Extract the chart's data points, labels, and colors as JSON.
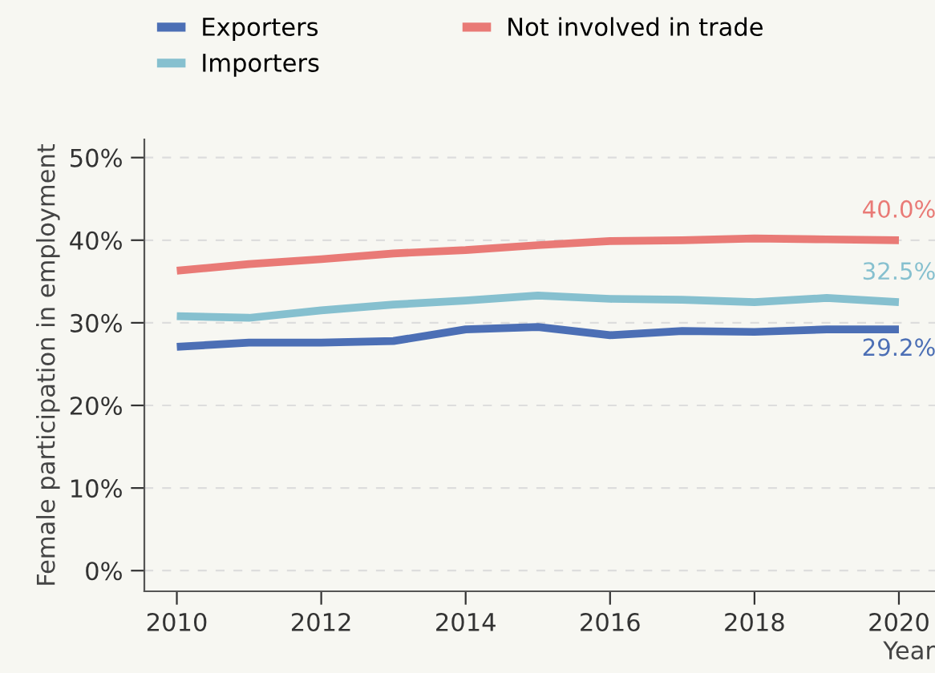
{
  "chart_data": {
    "type": "line",
    "xlabel": "Year",
    "ylabel": "Female participation in employment",
    "x": [
      2010,
      2011,
      2012,
      2013,
      2014,
      2015,
      2016,
      2017,
      2018,
      2019,
      2020
    ],
    "series": [
      {
        "name": "Exporters",
        "color": "#4c6fb5",
        "values": [
          27.1,
          27.6,
          27.6,
          27.8,
          29.2,
          29.5,
          28.5,
          29.0,
          28.9,
          29.2,
          29.2
        ],
        "value_labels": [
          null,
          null,
          null,
          null,
          null,
          null,
          null,
          null,
          null,
          null,
          "29.2%"
        ]
      },
      {
        "name": "Importers",
        "color": "#86c0cf",
        "values": [
          30.8,
          30.6,
          31.5,
          32.2,
          32.7,
          33.3,
          32.9,
          32.8,
          32.5,
          33.0,
          32.5
        ],
        "value_labels": [
          null,
          null,
          null,
          null,
          null,
          null,
          null,
          null,
          null,
          null,
          "32.5%"
        ]
      },
      {
        "name": "Not involved in trade",
        "color": "#e97a76",
        "values": [
          36.3,
          37.1,
          37.7,
          38.4,
          38.8,
          39.4,
          39.9,
          40.0,
          40.2,
          40.1,
          40.0
        ],
        "value_labels": [
          null,
          null,
          null,
          null,
          null,
          null,
          null,
          null,
          null,
          null,
          "40.0%"
        ]
      }
    ],
    "xlim": [
      2009.55,
      2020.5
    ],
    "xticks": [
      2010,
      2012,
      2014,
      2016,
      2018,
      2020
    ],
    "ylim": [
      -2.5,
      52.2
    ],
    "yticks": [
      {
        "value": 0,
        "label": "0%"
      },
      {
        "value": 10,
        "label": "10%"
      },
      {
        "value": 20,
        "label": "20%"
      },
      {
        "value": 30,
        "label": "30%"
      },
      {
        "value": 40,
        "label": "40%"
      },
      {
        "value": 50,
        "label": "50%"
      }
    ],
    "grid": "y",
    "legend": "top left",
    "line_style": "solid",
    "marker": "none"
  }
}
